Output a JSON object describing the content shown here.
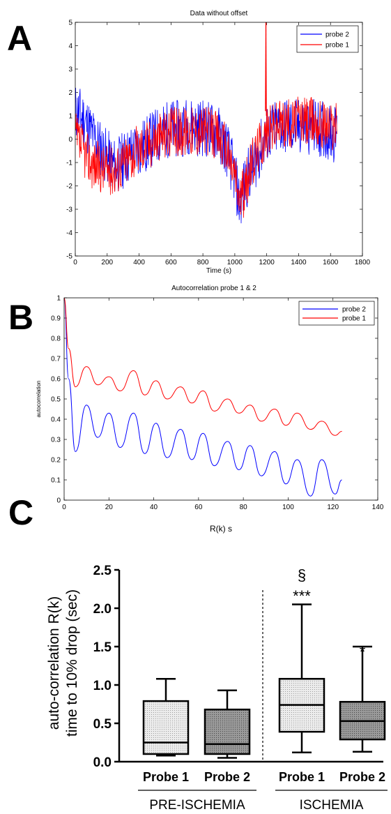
{
  "panels": {
    "a_letter": "A",
    "b_letter": "B",
    "c_letter": "C"
  },
  "chart_data": [
    {
      "type": "line",
      "title": "Data without offset",
      "xlabel": "Time (s)",
      "ylabel": "",
      "xlim": [
        0,
        1800
      ],
      "ylim": [
        -5,
        5
      ],
      "xticks": [
        "0",
        "200",
        "400",
        "600",
        "800",
        "1000",
        "1200",
        "1400",
        "1600",
        "1800"
      ],
      "yticks": [
        "-5",
        "-4",
        "-3",
        "-2",
        "-1",
        "0",
        "1",
        "2",
        "3",
        "4",
        "5"
      ],
      "legend": "top-right",
      "legend_entries": [
        "probe 2",
        "probe 1"
      ],
      "colors": {
        "probe 2": "#0000ff",
        "probe 1": "#ff0000"
      },
      "series": [
        {
          "name": "probe 2",
          "x": [
            0,
            50,
            100,
            150,
            200,
            250,
            300,
            350,
            400,
            450,
            500,
            550,
            600,
            650,
            700,
            750,
            800,
            850,
            900,
            950,
            1000,
            1030,
            1060,
            1100,
            1150,
            1200,
            1250,
            1300,
            1350,
            1400,
            1450,
            1500,
            1550,
            1600,
            1640
          ],
          "y": [
            1.2,
            0.9,
            0.3,
            -0.3,
            -0.8,
            -1.2,
            -0.9,
            -0.6,
            -0.4,
            -0.2,
            0.1,
            0.3,
            0.5,
            0.4,
            0.6,
            0.5,
            0.5,
            0.4,
            0.2,
            -0.4,
            -1.6,
            -2.8,
            -2.0,
            -1.3,
            -0.6,
            0.2,
            0.4,
            0.6,
            0.5,
            0.5,
            0.6,
            0.5,
            0.4,
            0.3,
            0.2
          ]
        },
        {
          "name": "probe 1",
          "x": [
            0,
            50,
            100,
            150,
            200,
            250,
            300,
            350,
            400,
            450,
            500,
            550,
            600,
            650,
            700,
            750,
            800,
            850,
            900,
            950,
            1000,
            1030,
            1060,
            1100,
            1150,
            1200,
            1250,
            1300,
            1350,
            1400,
            1450,
            1500,
            1550,
            1600,
            1640
          ],
          "y": [
            0.1,
            -0.5,
            -1.0,
            -1.2,
            -1.3,
            -1.3,
            -1.0,
            -0.7,
            -0.4,
            -0.2,
            0.0,
            0.2,
            0.3,
            0.3,
            0.4,
            0.4,
            0.4,
            0.3,
            0.1,
            -0.5,
            -1.5,
            -2.6,
            -2.2,
            -1.2,
            -0.3,
            0.3,
            0.6,
            0.7,
            0.7,
            0.8,
            0.8,
            0.8,
            0.7,
            0.6,
            0.5
          ]
        }
      ],
      "annotations": [
        {
          "series": "probe 1",
          "note_x": 1195,
          "peak_y": 5
        }
      ]
    },
    {
      "type": "line",
      "title": "Autocorrelation probe 1 & 2",
      "xlabel": "R(k) s",
      "ylabel": "autocorrelation",
      "xlim": [
        0,
        140
      ],
      "ylim": [
        0,
        1
      ],
      "xticks": [
        "0",
        "20",
        "40",
        "60",
        "80",
        "100",
        "120",
        "140"
      ],
      "yticks": [
        "0",
        "0.1",
        "0.2",
        "0.3",
        "0.4",
        "0.5",
        "0.6",
        "0.7",
        "0.8",
        "0.9",
        "1"
      ],
      "legend": "top-right",
      "legend_entries": [
        "probe 2",
        "probe 1"
      ],
      "colors": {
        "probe 2": "#0000ff",
        "probe 1": "#ff0000"
      },
      "series": [
        {
          "name": "probe 2",
          "x": [
            0,
            2,
            5,
            10,
            15,
            20,
            25,
            31,
            36,
            41,
            46,
            52,
            57,
            62,
            67,
            73,
            78,
            83,
            88,
            94,
            99,
            104,
            110,
            115,
            121,
            124
          ],
          "y": [
            1.0,
            0.6,
            0.24,
            0.47,
            0.31,
            0.43,
            0.26,
            0.43,
            0.23,
            0.38,
            0.21,
            0.35,
            0.2,
            0.33,
            0.17,
            0.29,
            0.15,
            0.27,
            0.12,
            0.24,
            0.08,
            0.2,
            0.02,
            0.2,
            0.03,
            0.1
          ]
        },
        {
          "name": "probe 1",
          "x": [
            0,
            2,
            5,
            10,
            15,
            20,
            25,
            31,
            36,
            41,
            46,
            52,
            57,
            62,
            67,
            73,
            78,
            83,
            88,
            94,
            99,
            104,
            110,
            115,
            121,
            124
          ],
          "y": [
            1.0,
            0.75,
            0.56,
            0.66,
            0.57,
            0.61,
            0.54,
            0.64,
            0.52,
            0.59,
            0.5,
            0.56,
            0.48,
            0.54,
            0.44,
            0.5,
            0.43,
            0.47,
            0.39,
            0.45,
            0.37,
            0.43,
            0.35,
            0.39,
            0.32,
            0.34
          ]
        }
      ]
    },
    {
      "type": "box",
      "title": "",
      "xlabel": "",
      "ylabel": "auto-correlation R(k)\ntime to 10% drop  (sec)",
      "ylim": [
        0,
        2.5
      ],
      "yticks": [
        "0.0",
        "0.5",
        "1.0",
        "1.5",
        "2.0",
        "2.5"
      ],
      "categories": [
        "Probe 1",
        "Probe 2",
        "Probe 1",
        "Probe 2"
      ],
      "groups": [
        {
          "label": "PRE-ISCHEMIA",
          "members": [
            0,
            1
          ]
        },
        {
          "label": "ISCHEMIA",
          "members": [
            2,
            3
          ]
        }
      ],
      "boxes": [
        {
          "min": 0.08,
          "q1": 0.1,
          "median": 0.25,
          "q3": 0.79,
          "max": 1.08,
          "fill": "light"
        },
        {
          "min": 0.05,
          "q1": 0.1,
          "median": 0.23,
          "q3": 0.68,
          "max": 0.93,
          "fill": "dark"
        },
        {
          "min": 0.12,
          "q1": 0.39,
          "median": 0.74,
          "q3": 1.08,
          "max": 2.05,
          "fill": "light"
        },
        {
          "min": 0.13,
          "q1": 0.29,
          "median": 0.53,
          "q3": 0.78,
          "max": 1.5,
          "fill": "dark"
        }
      ],
      "annotations": [
        {
          "box": 2,
          "text": "§"
        },
        {
          "box": 2,
          "text": "***"
        },
        {
          "box": 3,
          "text": "*"
        }
      ]
    }
  ]
}
